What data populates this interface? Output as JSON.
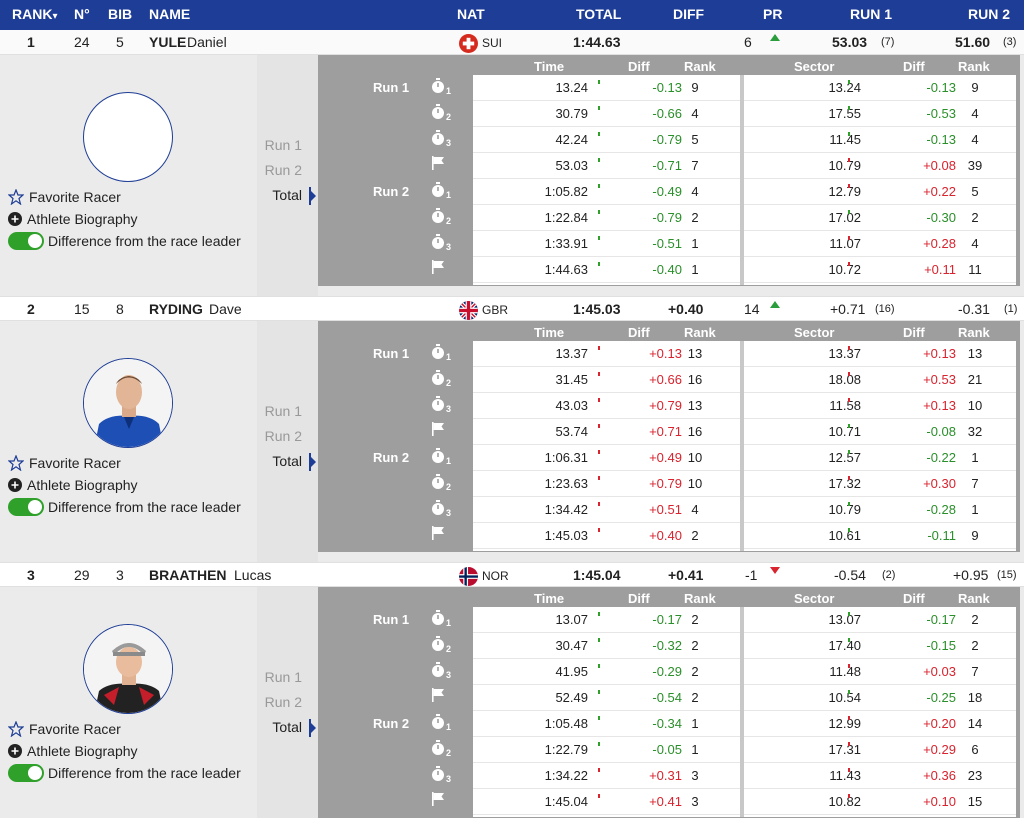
{
  "header": {
    "rank": "RANK",
    "rank_sort": "▾",
    "no": "N°",
    "bib": "BIB",
    "name": "NAME",
    "nat": "NAT",
    "total": "TOTAL",
    "diff": "DIFF",
    "pr": "PR",
    "run1": "RUN 1",
    "run2": "RUN 2"
  },
  "labels": {
    "time": "Time",
    "diff": "Diff",
    "rank": "Rank",
    "sector": "Sector",
    "run1": "Run 1",
    "run2": "Run 2",
    "total": "Total",
    "favorite": "Favorite Racer",
    "bio": "Athlete Biography",
    "leader_diff": "Difference from the race leader"
  },
  "colors": {
    "header_bg": "#1e3d96",
    "positive": "#2a8f2a",
    "negative": "#d9232e",
    "toggle": "#2fa12a"
  },
  "racers": [
    {
      "rank": "1",
      "no": "24",
      "bib": "5",
      "surname": "YULE",
      "firstname": "Daniel",
      "nat": "SUI",
      "total": "1:44.63",
      "diff": "",
      "pr": "6",
      "pr_trend": "up",
      "run1": "53.03",
      "run1_rank": "(7)",
      "run2": "51.60",
      "run2_rank": "(3)",
      "photo": "none",
      "splits": [
        {
          "icon": "stopwatch",
          "sub": "1",
          "time": "13.24",
          "diff": "-0.13",
          "rank": "9",
          "sector": "13.24",
          "sdiff": "-0.13",
          "srank": "9"
        },
        {
          "icon": "stopwatch",
          "sub": "2",
          "time": "30.79",
          "diff": "-0.66",
          "rank": "4",
          "sector": "17.55",
          "sdiff": "-0.53",
          "srank": "4"
        },
        {
          "icon": "stopwatch",
          "sub": "3",
          "time": "42.24",
          "diff": "-0.79",
          "rank": "5",
          "sector": "11.45",
          "sdiff": "-0.13",
          "srank": "4"
        },
        {
          "icon": "finish-flag",
          "sub": "",
          "time": "53.03",
          "diff": "-0.71",
          "rank": "7",
          "sector": "10.79",
          "sdiff": "+0.08",
          "srank": "39"
        },
        {
          "icon": "stopwatch",
          "sub": "1",
          "time": "1:05.82",
          "diff": "-0.49",
          "rank": "4",
          "sector": "12.79",
          "sdiff": "+0.22",
          "srank": "5"
        },
        {
          "icon": "stopwatch",
          "sub": "2",
          "time": "1:22.84",
          "diff": "-0.79",
          "rank": "2",
          "sector": "17.02",
          "sdiff": "-0.30",
          "srank": "2"
        },
        {
          "icon": "stopwatch",
          "sub": "3",
          "time": "1:33.91",
          "diff": "-0.51",
          "rank": "1",
          "sector": "11.07",
          "sdiff": "+0.28",
          "srank": "4"
        },
        {
          "icon": "finish-flag",
          "sub": "",
          "time": "1:44.63",
          "diff": "-0.40",
          "rank": "1",
          "sector": "10.72",
          "sdiff": "+0.11",
          "srank": "11"
        }
      ]
    },
    {
      "rank": "2",
      "no": "15",
      "bib": "8",
      "surname": "RYDING",
      "firstname": "Dave",
      "nat": "GBR",
      "total": "1:45.03",
      "diff": "+0.40",
      "pr": "14",
      "pr_trend": "up",
      "run1": "+0.71",
      "run1_rank": "(16)",
      "run2": "-0.31",
      "run2_rank": "(1)",
      "photo": "blue-jacket",
      "splits": [
        {
          "icon": "stopwatch",
          "sub": "1",
          "time": "13.37",
          "diff": "+0.13",
          "rank": "13",
          "sector": "13.37",
          "sdiff": "+0.13",
          "srank": "13"
        },
        {
          "icon": "stopwatch",
          "sub": "2",
          "time": "31.45",
          "diff": "+0.66",
          "rank": "16",
          "sector": "18.08",
          "sdiff": "+0.53",
          "srank": "21"
        },
        {
          "icon": "stopwatch",
          "sub": "3",
          "time": "43.03",
          "diff": "+0.79",
          "rank": "13",
          "sector": "11.58",
          "sdiff": "+0.13",
          "srank": "10"
        },
        {
          "icon": "finish-flag",
          "sub": "",
          "time": "53.74",
          "diff": "+0.71",
          "rank": "16",
          "sector": "10.71",
          "sdiff": "-0.08",
          "srank": "32"
        },
        {
          "icon": "stopwatch",
          "sub": "1",
          "time": "1:06.31",
          "diff": "+0.49",
          "rank": "10",
          "sector": "12.57",
          "sdiff": "-0.22",
          "srank": "1"
        },
        {
          "icon": "stopwatch",
          "sub": "2",
          "time": "1:23.63",
          "diff": "+0.79",
          "rank": "10",
          "sector": "17.32",
          "sdiff": "+0.30",
          "srank": "7"
        },
        {
          "icon": "stopwatch",
          "sub": "3",
          "time": "1:34.42",
          "diff": "+0.51",
          "rank": "4",
          "sector": "10.79",
          "sdiff": "-0.28",
          "srank": "1"
        },
        {
          "icon": "finish-flag",
          "sub": "",
          "time": "1:45.03",
          "diff": "+0.40",
          "rank": "2",
          "sector": "10.61",
          "sdiff": "-0.11",
          "srank": "9"
        }
      ]
    },
    {
      "rank": "3",
      "no": "29",
      "bib": "3",
      "surname": "BRAATHEN",
      "firstname": "Lucas",
      "nat": "NOR",
      "total": "1:45.04",
      "diff": "+0.41",
      "pr": "-1",
      "pr_trend": "down",
      "run1": "-0.54",
      "run1_rank": "(2)",
      "run2": "+0.95",
      "run2_rank": "(15)",
      "photo": "cap-racesuit",
      "splits": [
        {
          "icon": "stopwatch",
          "sub": "1",
          "time": "13.07",
          "diff": "-0.17",
          "rank": "2",
          "sector": "13.07",
          "sdiff": "-0.17",
          "srank": "2"
        },
        {
          "icon": "stopwatch",
          "sub": "2",
          "time": "30.47",
          "diff": "-0.32",
          "rank": "2",
          "sector": "17.40",
          "sdiff": "-0.15",
          "srank": "2"
        },
        {
          "icon": "stopwatch",
          "sub": "3",
          "time": "41.95",
          "diff": "-0.29",
          "rank": "2",
          "sector": "11.48",
          "sdiff": "+0.03",
          "srank": "7"
        },
        {
          "icon": "finish-flag",
          "sub": "",
          "time": "52.49",
          "diff": "-0.54",
          "rank": "2",
          "sector": "10.54",
          "sdiff": "-0.25",
          "srank": "18"
        },
        {
          "icon": "stopwatch",
          "sub": "1",
          "time": "1:05.48",
          "diff": "-0.34",
          "rank": "1",
          "sector": "12.99",
          "sdiff": "+0.20",
          "srank": "14"
        },
        {
          "icon": "stopwatch",
          "sub": "2",
          "time": "1:22.79",
          "diff": "-0.05",
          "rank": "1",
          "sector": "17.31",
          "sdiff": "+0.29",
          "srank": "6"
        },
        {
          "icon": "stopwatch",
          "sub": "3",
          "time": "1:34.22",
          "diff": "+0.31",
          "rank": "3",
          "sector": "11.43",
          "sdiff": "+0.36",
          "srank": "23"
        },
        {
          "icon": "finish-flag",
          "sub": "",
          "time": "1:45.04",
          "diff": "+0.41",
          "rank": "3",
          "sector": "10.82",
          "sdiff": "+0.10",
          "srank": "15"
        }
      ]
    }
  ]
}
